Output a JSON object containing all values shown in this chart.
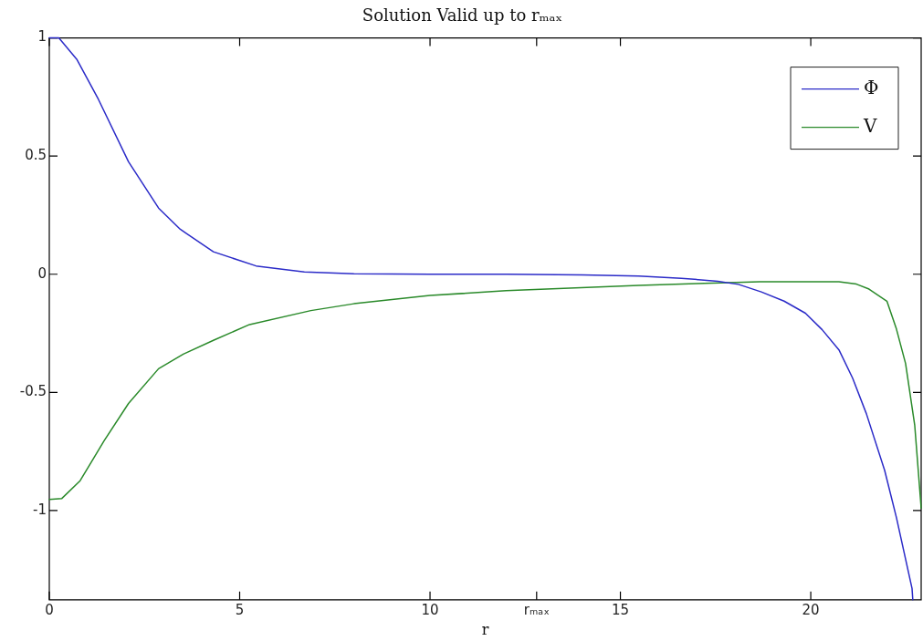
{
  "chart_data": {
    "type": "line",
    "title": "Solution Valid up to rₘₐₓ",
    "xlabel": "r",
    "xlim": [
      0,
      22.9
    ],
    "ylim": [
      -1.378,
      1
    ],
    "xticks": [
      0,
      5,
      10,
      {
        "value": 12.8,
        "label": "rₘₐₓ"
      },
      15,
      20
    ],
    "yticks": [
      -1,
      -0.5,
      0,
      0.5,
      1
    ],
    "grid": false,
    "legend": "top right",
    "marker": "none",
    "line_style": "solid",
    "series": [
      {
        "name": "Φ",
        "color": "#2b2bc8",
        "x": [
          0,
          0.25,
          0.72,
          1.29,
          2.08,
          2.87,
          3.44,
          4.31,
          5.43,
          6.7,
          8,
          10,
          12,
          14,
          15.48,
          16.6,
          17.56,
          18.1,
          18.7,
          19.3,
          19.86,
          20.3,
          20.74,
          21.1,
          21.46,
          21.94,
          22.25,
          22.66,
          22.68
        ],
        "values": [
          1,
          1,
          0.91,
          0.74,
          0.476,
          0.28,
          0.19,
          0.095,
          0.035,
          0.01,
          0.002,
          0,
          0,
          -0.003,
          -0.008,
          -0.017,
          -0.03,
          -0.043,
          -0.075,
          -0.114,
          -0.165,
          -0.235,
          -0.32,
          -0.44,
          -0.59,
          -0.83,
          -1.03,
          -1.33,
          -1.378
        ]
      },
      {
        "name": "V",
        "color": "#2a8a2a",
        "x": [
          0,
          0.33,
          0.81,
          1.44,
          2.08,
          2.87,
          3.52,
          4.31,
          5.26,
          6.87,
          8,
          10,
          12,
          15.48,
          17,
          18.66,
          20.74,
          21.2,
          21.53,
          22,
          22.25,
          22.49,
          22.73,
          22.9
        ],
        "values": [
          -0.953,
          -0.949,
          -0.874,
          -0.705,
          -0.547,
          -0.4,
          -0.338,
          -0.28,
          -0.213,
          -0.154,
          -0.125,
          -0.09,
          -0.07,
          -0.047,
          -0.04,
          -0.032,
          -0.032,
          -0.042,
          -0.063,
          -0.114,
          -0.232,
          -0.378,
          -0.638,
          -0.99
        ]
      }
    ]
  }
}
